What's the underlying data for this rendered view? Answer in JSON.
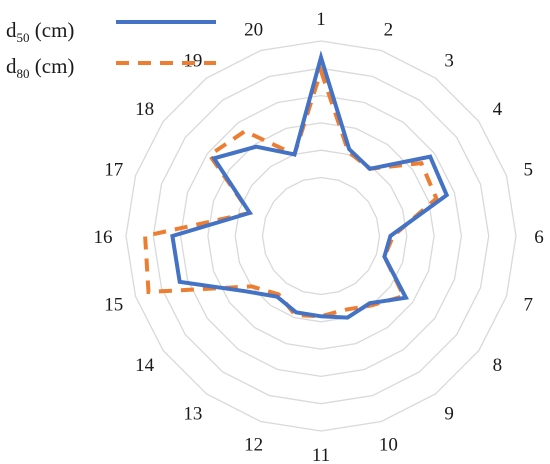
{
  "chart_data": {
    "type": "radar",
    "categories": [
      "1",
      "2",
      "3",
      "4",
      "5",
      "6",
      "7",
      "8",
      "9",
      "10",
      "11",
      "12",
      "13",
      "14",
      "15",
      "16",
      "17",
      "18",
      "19",
      "20"
    ],
    "rlim": [
      0,
      5
    ],
    "inner_hole_ratio": 0.3,
    "gridlines": 5,
    "grid_color": "#d9d9d9",
    "legend": {
      "position": "top-left"
    },
    "series": [
      {
        "key": "d50",
        "base": "d",
        "sub": "50",
        "unit": " (cm)",
        "color": "#4472c4",
        "dash": "solid",
        "values": [
          4.4,
          1.2,
          0.9,
          2.8,
          2.7,
          0.4,
          0.3,
          1.7,
          0.9,
          1.0,
          0.8,
          0.8,
          0.6,
          1.3,
          3.3,
          3.3,
          0.6,
          2.7,
          1.9,
          1.0
        ]
      },
      {
        "key": "d80",
        "base": "d",
        "sub": "80",
        "unit": " (cm)",
        "color": "#ed7d31",
        "dash": "dashed",
        "values": [
          3.9,
          1.1,
          0.9,
          2.4,
          2.3,
          0.5,
          0.3,
          1.6,
          1.0,
          0.7,
          0.8,
          0.9,
          0.5,
          1.0,
          4.5,
          4.3,
          0.6,
          2.9,
          2.6,
          1.0
        ]
      }
    ]
  }
}
